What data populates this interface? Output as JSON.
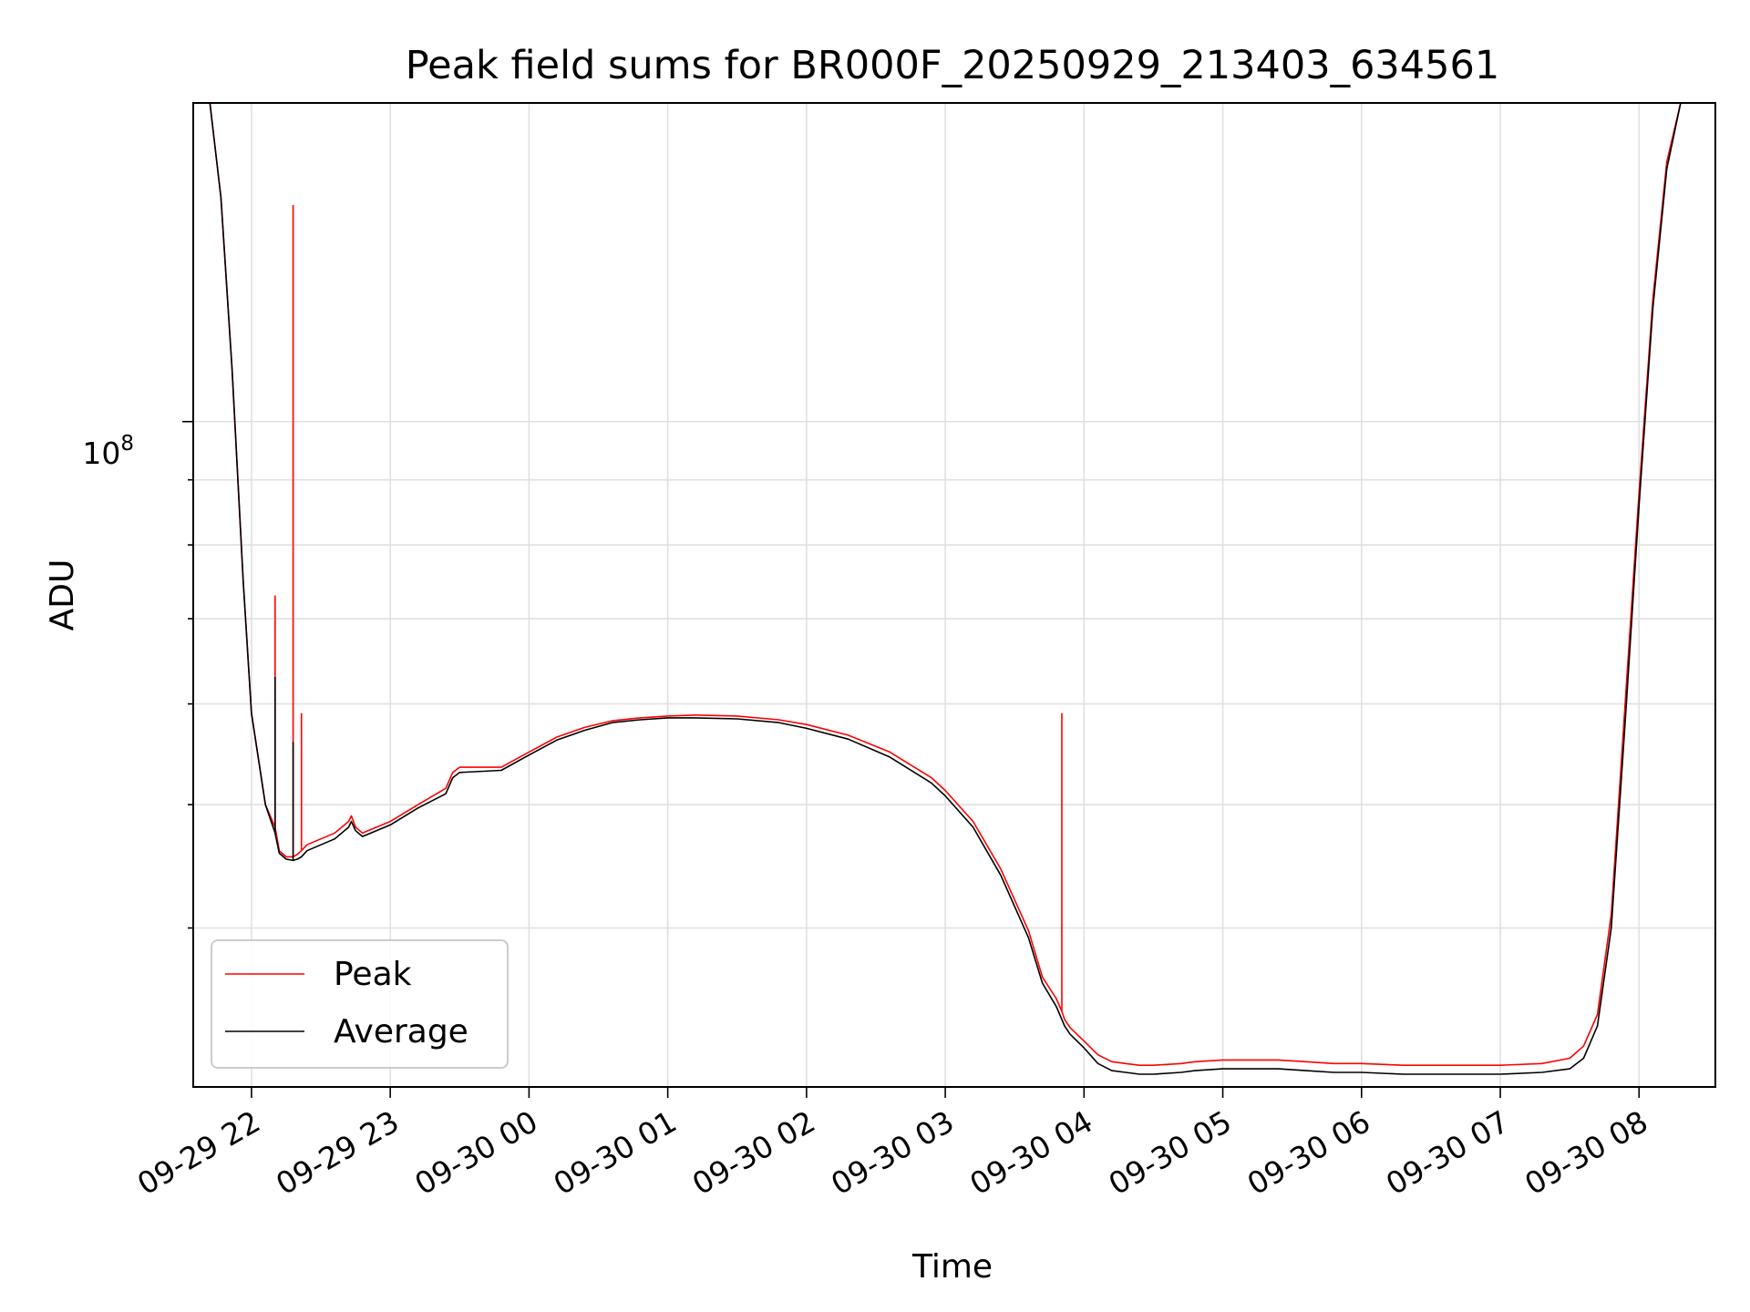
{
  "chart_data": {
    "type": "line",
    "title": "Peak field sums for BR000F_20250929_213403_634561",
    "xlabel": "Time",
    "ylabel": "ADU",
    "yscale": "log",
    "xlim": [
      -0.42,
      10.55
    ],
    "ylim": [
      30000000.0,
      178000000.0
    ],
    "grid": true,
    "legend_position": "lower-left",
    "x_ticks": [
      {
        "value": 0,
        "label": "09-29 22"
      },
      {
        "value": 1,
        "label": "09-29 23"
      },
      {
        "value": 2,
        "label": "09-30 00"
      },
      {
        "value": 3,
        "label": "09-30 01"
      },
      {
        "value": 4,
        "label": "09-30 02"
      },
      {
        "value": 5,
        "label": "09-30 03"
      },
      {
        "value": 6,
        "label": "09-30 04"
      },
      {
        "value": 7,
        "label": "09-30 05"
      },
      {
        "value": 8,
        "label": "09-30 06"
      },
      {
        "value": 9,
        "label": "09-30 07"
      },
      {
        "value": 10,
        "label": "09-30 08"
      }
    ],
    "y_major_ticks": [
      {
        "value": 100000000,
        "label": "10^8"
      }
    ],
    "y_minor_ticks": [
      40000000,
      50000000,
      60000000,
      70000000,
      80000000,
      90000000
    ],
    "y_tick_base": "10",
    "y_tick_exp": "8",
    "series": [
      {
        "name": "Peak",
        "color": "#ff0000",
        "x": [
          -0.3,
          -0.22,
          -0.14,
          -0.06,
          0.0,
          0.1,
          0.17,
          0.2,
          0.25,
          0.3,
          0.33,
          0.36,
          0.4,
          0.5,
          0.6,
          0.7,
          0.72,
          0.75,
          0.8,
          1.0,
          1.2,
          1.4,
          1.45,
          1.5,
          1.8,
          2.0,
          2.2,
          2.4,
          2.6,
          2.8,
          3.0,
          3.2,
          3.5,
          3.8,
          4.0,
          4.3,
          4.6,
          4.9,
          5.0,
          5.2,
          5.4,
          5.6,
          5.7,
          5.8,
          5.84,
          5.86,
          5.9,
          6.0,
          6.1,
          6.2,
          6.3,
          6.4,
          6.5,
          6.7,
          6.8,
          7.0,
          7.2,
          7.4,
          7.6,
          7.8,
          8.0,
          8.3,
          8.6,
          9.0,
          9.3,
          9.5,
          9.6,
          9.7,
          9.8,
          9.9,
          10.0,
          10.1,
          10.2,
          10.3,
          10.38,
          10.45
        ],
        "values": [
          178000000,
          150000000,
          110000000,
          75000000,
          59000000,
          50000000,
          48000000,
          46000000,
          45500000,
          45500000,
          45700000,
          46000000,
          46500000,
          47000000,
          47500000,
          48500000,
          49000000,
          48000000,
          47500000,
          48500000,
          50000000,
          51500000,
          53000000,
          53500000,
          53500000,
          55000000,
          56500000,
          57500000,
          58200000,
          58500000,
          58700000,
          58800000,
          58700000,
          58300000,
          57800000,
          56700000,
          55000000,
          52500000,
          51300000,
          48500000,
          44500000,
          39800000,
          36600000,
          35200000,
          34400000,
          33900000,
          33400000,
          32600000,
          31800000,
          31400000,
          31300000,
          31200000,
          31200000,
          31300000,
          31400000,
          31500000,
          31500000,
          31500000,
          31400000,
          31300000,
          31300000,
          31200000,
          31200000,
          31200000,
          31300000,
          31600000,
          32300000,
          34200000,
          41000000,
          60000000,
          88000000,
          125000000,
          160000000,
          178000000,
          178000000,
          178000000
        ],
        "spikes": [
          {
            "x": 0.17,
            "value": 73000000
          },
          {
            "x": 0.3,
            "value": 148000000
          },
          {
            "x": 0.36,
            "value": 59000000
          },
          {
            "x": 5.84,
            "value": 59000000
          }
        ]
      },
      {
        "name": "Average",
        "color": "#000000",
        "x": [
          -0.3,
          -0.22,
          -0.14,
          -0.06,
          0.0,
          0.1,
          0.17,
          0.2,
          0.25,
          0.3,
          0.33,
          0.36,
          0.4,
          0.5,
          0.6,
          0.7,
          0.72,
          0.75,
          0.8,
          1.0,
          1.2,
          1.4,
          1.45,
          1.5,
          1.8,
          2.0,
          2.2,
          2.4,
          2.6,
          2.8,
          3.0,
          3.2,
          3.5,
          3.8,
          4.0,
          4.3,
          4.6,
          4.9,
          5.0,
          5.2,
          5.4,
          5.6,
          5.7,
          5.8,
          5.84,
          5.86,
          5.9,
          6.0,
          6.1,
          6.2,
          6.3,
          6.4,
          6.5,
          6.7,
          6.8,
          7.0,
          7.2,
          7.4,
          7.6,
          7.8,
          8.0,
          8.3,
          8.6,
          9.0,
          9.3,
          9.5,
          9.6,
          9.7,
          9.8,
          9.9,
          10.0,
          10.1,
          10.2,
          10.3,
          10.38,
          10.45
        ],
        "values": [
          178000000,
          150000000,
          110000000,
          75000000,
          59000000,
          50000000,
          47500000,
          45800000,
          45300000,
          45200000,
          45300000,
          45500000,
          46000000,
          46500000,
          47000000,
          48000000,
          48500000,
          47700000,
          47200000,
          48200000,
          49700000,
          51000000,
          52500000,
          53000000,
          53200000,
          54700000,
          56200000,
          57200000,
          58000000,
          58300000,
          58500000,
          58500000,
          58400000,
          58000000,
          57400000,
          56300000,
          54500000,
          52000000,
          50800000,
          48000000,
          44000000,
          39300000,
          36200000,
          34700000,
          33900000,
          33500000,
          33000000,
          32200000,
          31300000,
          30900000,
          30800000,
          30700000,
          30700000,
          30800000,
          30900000,
          31000000,
          31000000,
          31000000,
          30900000,
          30800000,
          30800000,
          30700000,
          30700000,
          30700000,
          30800000,
          31000000,
          31600000,
          33500000,
          40000000,
          58000000,
          86000000,
          123000000,
          158000000,
          178000000,
          178000000,
          178000000
        ],
        "spikes": [
          {
            "x": 0.17,
            "value": 63000000
          },
          {
            "x": 0.3,
            "value": 56000000
          }
        ]
      }
    ]
  }
}
